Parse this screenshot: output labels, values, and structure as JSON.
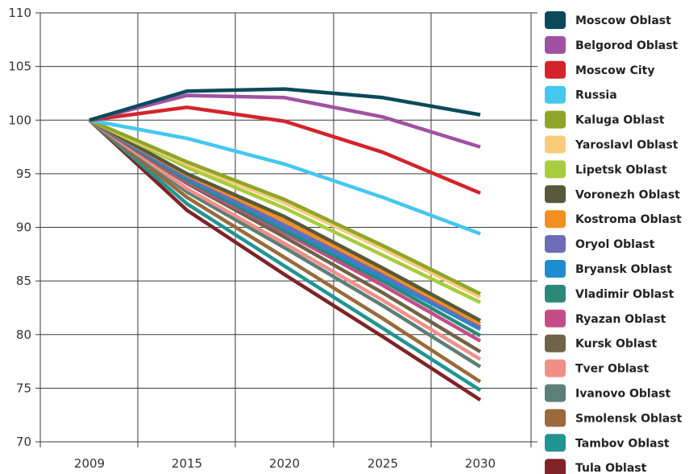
{
  "chart_data": {
    "type": "line",
    "title": "",
    "xlabel": "",
    "ylabel": "",
    "x": [
      "2009",
      "2015",
      "2020",
      "2025",
      "2030"
    ],
    "ylim": [
      70,
      110
    ],
    "yticks": [
      70,
      75,
      80,
      85,
      90,
      95,
      100,
      105,
      110
    ],
    "grid": true,
    "legend_position": "right",
    "series": [
      {
        "name": "Moscow Oblast",
        "color": "#0b4a5a",
        "values": [
          100,
          102.7,
          102.9,
          102.1,
          100.5
        ]
      },
      {
        "name": "Belgorod Oblast",
        "color": "#a052a2",
        "values": [
          100,
          102.3,
          102.1,
          100.3,
          97.5
        ]
      },
      {
        "name": "Moscow City",
        "color": "#d3242b",
        "values": [
          100,
          101.2,
          99.9,
          97.0,
          93.2
        ]
      },
      {
        "name": "Russia",
        "color": "#45c7ef",
        "values": [
          100,
          98.3,
          95.9,
          92.8,
          89.4
        ]
      },
      {
        "name": "Kaluga Oblast",
        "color": "#8ea52a",
        "values": [
          100,
          96.1,
          92.6,
          88.3,
          83.8
        ]
      },
      {
        "name": "Yaroslavl Oblast",
        "color": "#f9cc7c",
        "values": [
          100,
          95.9,
          92.3,
          88.0,
          83.5
        ]
      },
      {
        "name": "Lipetsk Oblast",
        "color": "#a7cc3f",
        "values": [
          100,
          95.6,
          91.8,
          87.4,
          83.0
        ]
      },
      {
        "name": "Voronezh Oblast",
        "color": "#57593a",
        "values": [
          100,
          95.0,
          91.0,
          86.2,
          81.3
        ]
      },
      {
        "name": "Kostroma Oblast",
        "color": "#f0901e",
        "values": [
          100,
          94.9,
          90.6,
          85.9,
          81.0
        ]
      },
      {
        "name": "Oryol Oblast",
        "color": "#6e6cb6",
        "values": [
          100,
          94.7,
          90.2,
          85.6,
          80.7
        ]
      },
      {
        "name": "Bryansk Oblast",
        "color": "#1f8ccf",
        "values": [
          100,
          94.6,
          90.0,
          85.3,
          80.5
        ]
      },
      {
        "name": "Vladimir Oblast",
        "color": "#2b8978",
        "values": [
          100,
          94.4,
          89.7,
          85.0,
          79.9
        ]
      },
      {
        "name": "Ryazan Oblast",
        "color": "#c54d87",
        "values": [
          100,
          94.2,
          89.5,
          84.6,
          79.4
        ]
      },
      {
        "name": "Kursk Oblast",
        "color": "#6f6447",
        "values": [
          100,
          94.1,
          89.1,
          83.9,
          78.4
        ]
      },
      {
        "name": "Tver Oblast",
        "color": "#f08f88",
        "values": [
          100,
          93.6,
          88.5,
          83.2,
          77.7
        ]
      },
      {
        "name": "Ivanovo Oblast",
        "color": "#5c7f78",
        "values": [
          100,
          93.3,
          88.1,
          82.7,
          77.0
        ]
      },
      {
        "name": "Smolensk Oblast",
        "color": "#9a6a3c",
        "values": [
          100,
          92.8,
          87.2,
          81.5,
          75.6
        ]
      },
      {
        "name": "Tambov Oblast",
        "color": "#219493",
        "values": [
          100,
          92.2,
          86.4,
          80.6,
          74.8
        ]
      },
      {
        "name": "Tula Oblast",
        "color": "#7f2327",
        "values": [
          100,
          91.6,
          85.6,
          79.8,
          73.9
        ]
      }
    ]
  }
}
